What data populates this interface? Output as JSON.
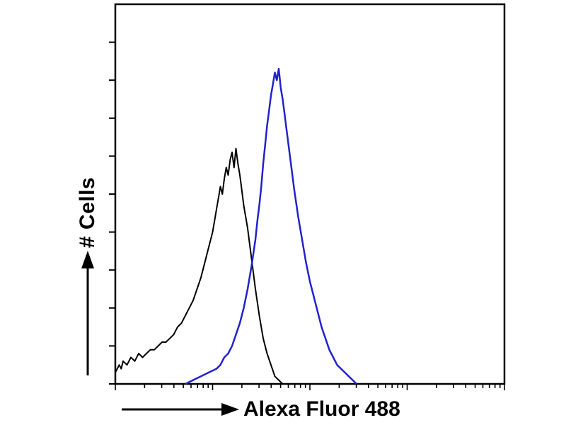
{
  "figure": {
    "background": "#ffffff",
    "frame_color": "#000000",
    "tick_color": "#000000"
  },
  "chart_data": {
    "type": "line",
    "title": "",
    "xlabel": "Alexa Fluor 488",
    "ylabel": "# Cells",
    "x_scale": "log",
    "x_decades": 4,
    "y_ticks": 10,
    "xlim": [
      0,
      100
    ],
    "ylim": [
      0,
      100
    ],
    "grid": false,
    "legend": false,
    "series": [
      {
        "name": "black",
        "color": "#000000",
        "stroke_width": 2,
        "points": [
          [
            0,
            3
          ],
          [
            1,
            5
          ],
          [
            1.5,
            4
          ],
          [
            2,
            6
          ],
          [
            3,
            5
          ],
          [
            4,
            7
          ],
          [
            5,
            6
          ],
          [
            6,
            8
          ],
          [
            7,
            7
          ],
          [
            8,
            8
          ],
          [
            9,
            9
          ],
          [
            10,
            9
          ],
          [
            11,
            10
          ],
          [
            12,
            11
          ],
          [
            13,
            11
          ],
          [
            14,
            12
          ],
          [
            15,
            13
          ],
          [
            16,
            15
          ],
          [
            17,
            16
          ],
          [
            18,
            18
          ],
          [
            19,
            20
          ],
          [
            20,
            22
          ],
          [
            21,
            25
          ],
          [
            22,
            28
          ],
          [
            23,
            32
          ],
          [
            24,
            36
          ],
          [
            25,
            40
          ],
          [
            25.5,
            43
          ],
          [
            26,
            46
          ],
          [
            26.5,
            49
          ],
          [
            27,
            52
          ],
          [
            27.5,
            50
          ],
          [
            28,
            54
          ],
          [
            28.5,
            57
          ],
          [
            29,
            55
          ],
          [
            29.5,
            59
          ],
          [
            30,
            61
          ],
          [
            30.5,
            57
          ],
          [
            31,
            62
          ],
          [
            31.5,
            58
          ],
          [
            32,
            55
          ],
          [
            32.5,
            51
          ],
          [
            33,
            47
          ],
          [
            34,
            41
          ],
          [
            35,
            33
          ],
          [
            36,
            25
          ],
          [
            37,
            18
          ],
          [
            38,
            12
          ],
          [
            39,
            8
          ],
          [
            40,
            5
          ],
          [
            41,
            2
          ],
          [
            42,
            1
          ],
          [
            43,
            0
          ]
        ]
      },
      {
        "name": "blue",
        "color": "#2222cc",
        "stroke_width": 2.5,
        "points": [
          [
            18,
            0
          ],
          [
            20,
            1
          ],
          [
            22,
            2
          ],
          [
            24,
            3
          ],
          [
            26,
            4
          ],
          [
            27,
            5
          ],
          [
            28,
            7
          ],
          [
            29,
            8
          ],
          [
            30,
            10
          ],
          [
            31,
            13
          ],
          [
            32,
            16
          ],
          [
            33,
            20
          ],
          [
            34,
            25
          ],
          [
            35,
            31
          ],
          [
            36,
            38
          ],
          [
            36.5,
            43
          ],
          [
            37,
            47
          ],
          [
            37.5,
            52
          ],
          [
            38,
            58
          ],
          [
            38.5,
            63
          ],
          [
            39,
            68
          ],
          [
            39.5,
            72
          ],
          [
            40,
            76
          ],
          [
            40.5,
            79
          ],
          [
            41,
            82
          ],
          [
            41.5,
            80
          ],
          [
            42,
            83
          ],
          [
            42.5,
            78
          ],
          [
            43,
            75
          ],
          [
            43.5,
            71
          ],
          [
            44,
            67
          ],
          [
            45,
            59
          ],
          [
            46,
            51
          ],
          [
            47,
            44
          ],
          [
            48,
            38
          ],
          [
            49,
            32
          ],
          [
            50,
            27
          ],
          [
            51,
            23
          ],
          [
            52,
            19
          ],
          [
            53,
            15
          ],
          [
            54,
            12
          ],
          [
            55,
            9
          ],
          [
            56,
            7
          ],
          [
            57,
            5
          ],
          [
            58,
            4
          ],
          [
            59,
            3
          ],
          [
            60,
            2
          ],
          [
            61,
            1
          ],
          [
            62,
            0
          ]
        ]
      }
    ]
  }
}
